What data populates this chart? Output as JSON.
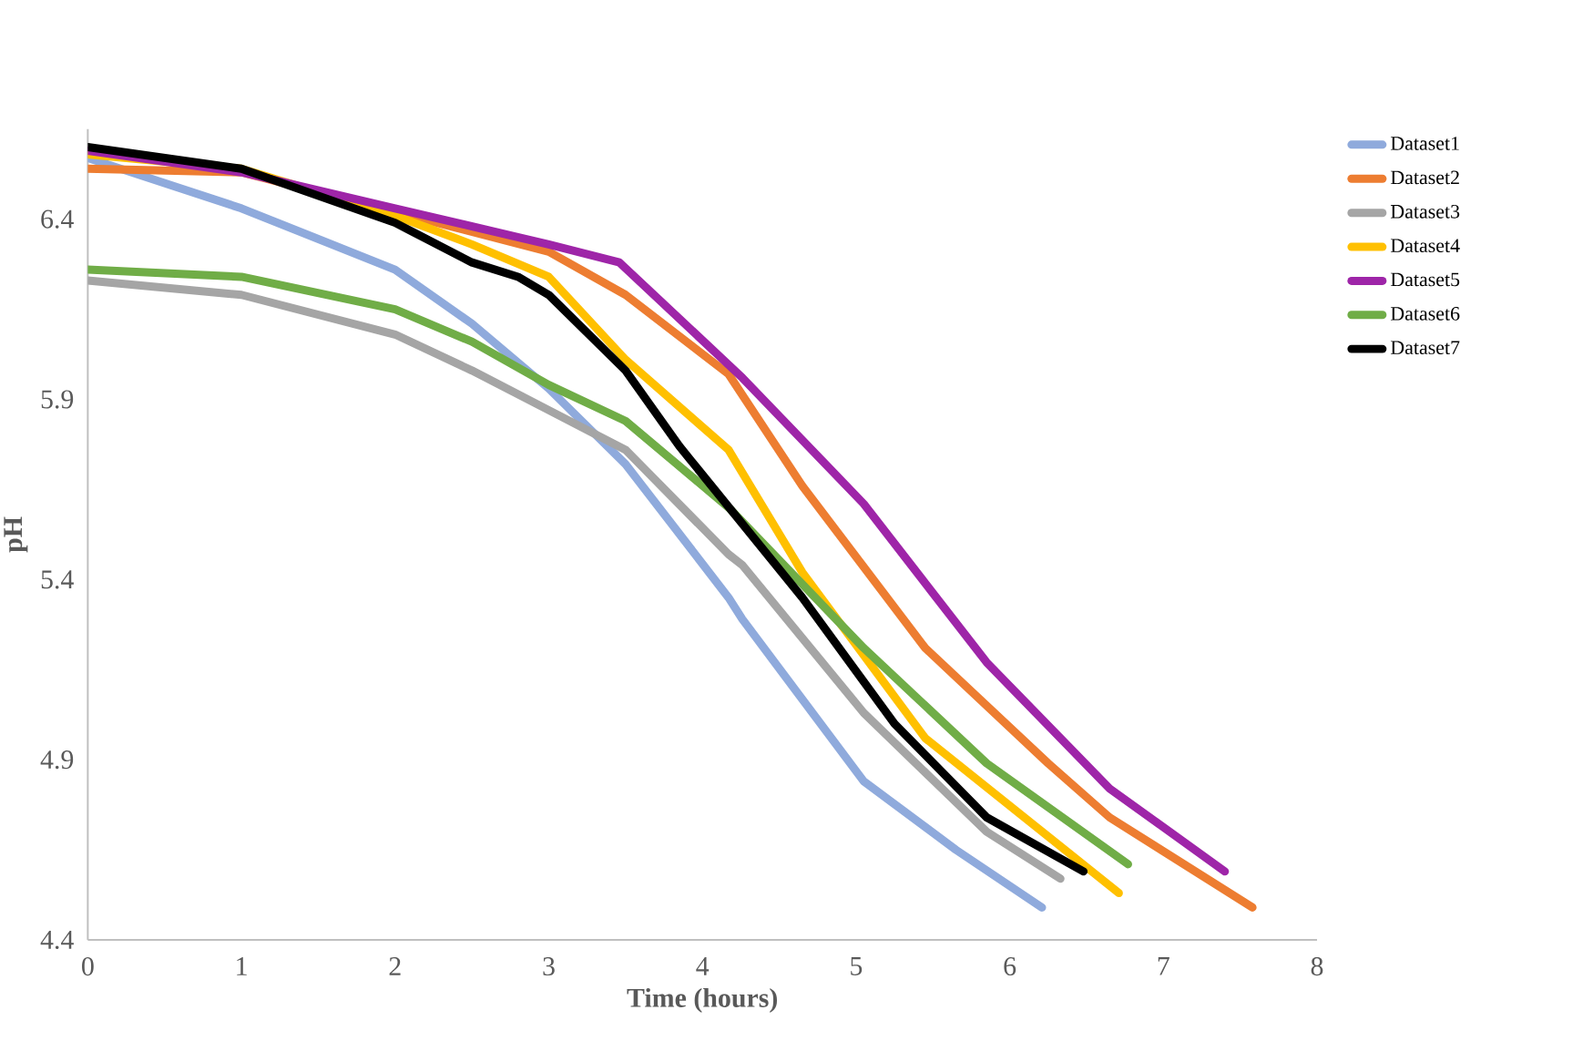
{
  "chart_data": {
    "type": "line",
    "xlabel": "Time (hours)",
    "ylabel": "pH",
    "xlim": [
      0,
      8
    ],
    "ylim": [
      4.4,
      6.65
    ],
    "xticks": [
      0,
      1,
      2,
      3,
      4,
      5,
      6,
      7,
      8
    ],
    "yticks": [
      4.4,
      4.9,
      5.4,
      5.9,
      6.4
    ],
    "grid": false,
    "legend": "right",
    "marker": "none",
    "line_style": "solid",
    "series": [
      {
        "name": "Dataset1",
        "color": "#8faadc",
        "x": [
          0,
          1,
          2,
          2.5,
          3,
          3.5,
          4.17,
          4.26,
          5.05,
          5.65,
          6.21
        ],
        "values": [
          6.57,
          6.43,
          6.26,
          6.11,
          5.93,
          5.72,
          5.35,
          5.29,
          4.84,
          4.65,
          4.49
        ]
      },
      {
        "name": "Dataset2",
        "color": "#ed7d31",
        "x": [
          0,
          1,
          2,
          3,
          3.5,
          4.17,
          4.65,
          5.45,
          6.25,
          6.65,
          7.58
        ],
        "values": [
          6.54,
          6.53,
          6.42,
          6.31,
          6.19,
          5.97,
          5.66,
          5.21,
          4.89,
          4.74,
          4.49
        ]
      },
      {
        "name": "Dataset3",
        "color": "#a5a5a5",
        "x": [
          0,
          1,
          2,
          2.5,
          3,
          3.5,
          4.17,
          4.26,
          5.05,
          5.85,
          6.33
        ],
        "values": [
          6.23,
          6.19,
          6.08,
          5.98,
          5.87,
          5.76,
          5.47,
          5.44,
          5.03,
          4.7,
          4.57
        ]
      },
      {
        "name": "Dataset4",
        "color": "#ffc000",
        "x": [
          0,
          1,
          2,
          2.5,
          3,
          3.5,
          4.17,
          4.65,
          5.45,
          6.71
        ],
        "values": [
          6.58,
          6.54,
          6.41,
          6.33,
          6.24,
          6.01,
          5.76,
          5.42,
          4.96,
          4.53
        ]
      },
      {
        "name": "Dataset5",
        "color": "#9e25a8",
        "x": [
          0,
          1,
          2,
          3,
          3.46,
          4.26,
          5.05,
          5.85,
          6.65,
          7.4
        ],
        "values": [
          6.59,
          6.53,
          6.43,
          6.33,
          6.28,
          5.96,
          5.61,
          5.17,
          4.82,
          4.59
        ]
      },
      {
        "name": "Dataset6",
        "color": "#70ad47",
        "x": [
          0,
          1,
          2,
          2.5,
          3,
          3.5,
          4.17,
          5.05,
          5.85,
          6.77
        ],
        "values": [
          6.26,
          6.24,
          6.15,
          6.06,
          5.94,
          5.84,
          5.6,
          5.21,
          4.89,
          4.61
        ]
      },
      {
        "name": "Dataset7",
        "color": "#000000",
        "x": [
          0,
          1,
          2,
          2.5,
          2.8,
          3,
          3.5,
          3.85,
          4.65,
          5.25,
          5.85,
          6.48
        ],
        "values": [
          6.6,
          6.54,
          6.39,
          6.28,
          6.24,
          6.19,
          5.98,
          5.77,
          5.35,
          5.0,
          4.74,
          4.59
        ]
      }
    ]
  }
}
